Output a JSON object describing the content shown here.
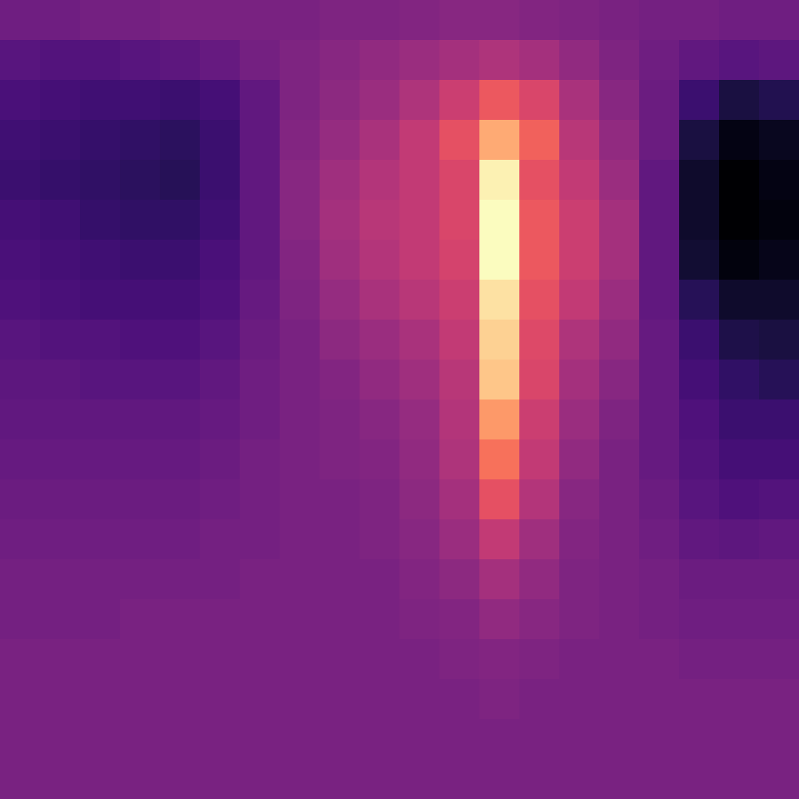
{
  "chart_data": {
    "type": "heatmap",
    "color": "magma",
    "tick_labels": false,
    "cells": [
      [
        0.33,
        0.33,
        0.34,
        0.34,
        0.35,
        0.35,
        0.35,
        0.35,
        0.36,
        0.36,
        0.37,
        0.38,
        0.38,
        0.37,
        0.36,
        0.35,
        0.34,
        0.34,
        0.33,
        0.33
      ],
      [
        0.28,
        0.27,
        0.27,
        0.28,
        0.29,
        0.31,
        0.34,
        0.36,
        0.38,
        0.4,
        0.42,
        0.44,
        0.46,
        0.44,
        0.4,
        0.36,
        0.33,
        0.3,
        0.28,
        0.29
      ],
      [
        0.25,
        0.24,
        0.23,
        0.23,
        0.22,
        0.24,
        0.3,
        0.36,
        0.39,
        0.42,
        0.46,
        0.52,
        0.6,
        0.55,
        0.45,
        0.38,
        0.32,
        0.22,
        0.15,
        0.17
      ],
      [
        0.23,
        0.22,
        0.21,
        0.2,
        0.19,
        0.22,
        0.3,
        0.37,
        0.41,
        0.45,
        0.5,
        0.58,
        0.75,
        0.62,
        0.48,
        0.4,
        0.32,
        0.15,
        0.08,
        0.1
      ],
      [
        0.22,
        0.21,
        0.2,
        0.19,
        0.18,
        0.22,
        0.3,
        0.38,
        0.43,
        0.47,
        0.5,
        0.55,
        0.88,
        0.58,
        0.5,
        0.42,
        0.3,
        0.12,
        0.05,
        0.08
      ],
      [
        0.24,
        0.23,
        0.21,
        0.2,
        0.2,
        0.23,
        0.3,
        0.38,
        0.44,
        0.48,
        0.5,
        0.55,
        0.9,
        0.6,
        0.52,
        0.44,
        0.3,
        0.12,
        0.05,
        0.07
      ],
      [
        0.25,
        0.24,
        0.23,
        0.22,
        0.22,
        0.25,
        0.3,
        0.37,
        0.43,
        0.47,
        0.5,
        0.54,
        0.9,
        0.6,
        0.52,
        0.44,
        0.3,
        0.13,
        0.07,
        0.09
      ],
      [
        0.26,
        0.25,
        0.24,
        0.24,
        0.24,
        0.26,
        0.31,
        0.36,
        0.41,
        0.45,
        0.48,
        0.52,
        0.85,
        0.58,
        0.5,
        0.42,
        0.3,
        0.18,
        0.12,
        0.12
      ],
      [
        0.28,
        0.27,
        0.27,
        0.26,
        0.26,
        0.28,
        0.32,
        0.35,
        0.39,
        0.42,
        0.45,
        0.5,
        0.82,
        0.56,
        0.46,
        0.4,
        0.31,
        0.22,
        0.16,
        0.15
      ],
      [
        0.29,
        0.29,
        0.28,
        0.28,
        0.28,
        0.3,
        0.33,
        0.35,
        0.37,
        0.4,
        0.43,
        0.48,
        0.8,
        0.55,
        0.44,
        0.38,
        0.31,
        0.24,
        0.2,
        0.18
      ],
      [
        0.3,
        0.3,
        0.3,
        0.3,
        0.3,
        0.31,
        0.33,
        0.35,
        0.36,
        0.38,
        0.41,
        0.47,
        0.72,
        0.52,
        0.42,
        0.36,
        0.31,
        0.26,
        0.22,
        0.22
      ],
      [
        0.31,
        0.31,
        0.31,
        0.31,
        0.31,
        0.32,
        0.34,
        0.35,
        0.36,
        0.37,
        0.4,
        0.46,
        0.65,
        0.5,
        0.4,
        0.35,
        0.31,
        0.27,
        0.24,
        0.24
      ],
      [
        0.32,
        0.32,
        0.32,
        0.32,
        0.32,
        0.33,
        0.34,
        0.35,
        0.35,
        0.36,
        0.39,
        0.44,
        0.58,
        0.47,
        0.38,
        0.35,
        0.32,
        0.28,
        0.26,
        0.27
      ],
      [
        0.33,
        0.33,
        0.33,
        0.33,
        0.33,
        0.34,
        0.34,
        0.35,
        0.35,
        0.36,
        0.38,
        0.42,
        0.5,
        0.43,
        0.37,
        0.35,
        0.33,
        0.3,
        0.29,
        0.3
      ],
      [
        0.34,
        0.34,
        0.34,
        0.34,
        0.34,
        0.34,
        0.35,
        0.35,
        0.35,
        0.35,
        0.37,
        0.39,
        0.44,
        0.4,
        0.36,
        0.35,
        0.34,
        0.32,
        0.32,
        0.32
      ],
      [
        0.34,
        0.34,
        0.34,
        0.35,
        0.35,
        0.35,
        0.35,
        0.35,
        0.35,
        0.35,
        0.36,
        0.37,
        0.4,
        0.38,
        0.36,
        0.35,
        0.34,
        0.33,
        0.33,
        0.33
      ],
      [
        0.35,
        0.35,
        0.35,
        0.35,
        0.35,
        0.35,
        0.35,
        0.35,
        0.35,
        0.35,
        0.35,
        0.36,
        0.37,
        0.36,
        0.35,
        0.35,
        0.35,
        0.34,
        0.34,
        0.34
      ],
      [
        0.35,
        0.35,
        0.35,
        0.35,
        0.35,
        0.35,
        0.35,
        0.35,
        0.35,
        0.35,
        0.35,
        0.35,
        0.36,
        0.35,
        0.35,
        0.35,
        0.35,
        0.35,
        0.35,
        0.35
      ],
      [
        0.35,
        0.35,
        0.35,
        0.35,
        0.35,
        0.35,
        0.35,
        0.35,
        0.35,
        0.35,
        0.35,
        0.35,
        0.35,
        0.35,
        0.35,
        0.35,
        0.35,
        0.35,
        0.35,
        0.35
      ],
      [
        0.35,
        0.35,
        0.35,
        0.35,
        0.35,
        0.35,
        0.35,
        0.35,
        0.35,
        0.35,
        0.35,
        0.35,
        0.35,
        0.35,
        0.35,
        0.35,
        0.35,
        0.35,
        0.35,
        0.35
      ]
    ]
  }
}
